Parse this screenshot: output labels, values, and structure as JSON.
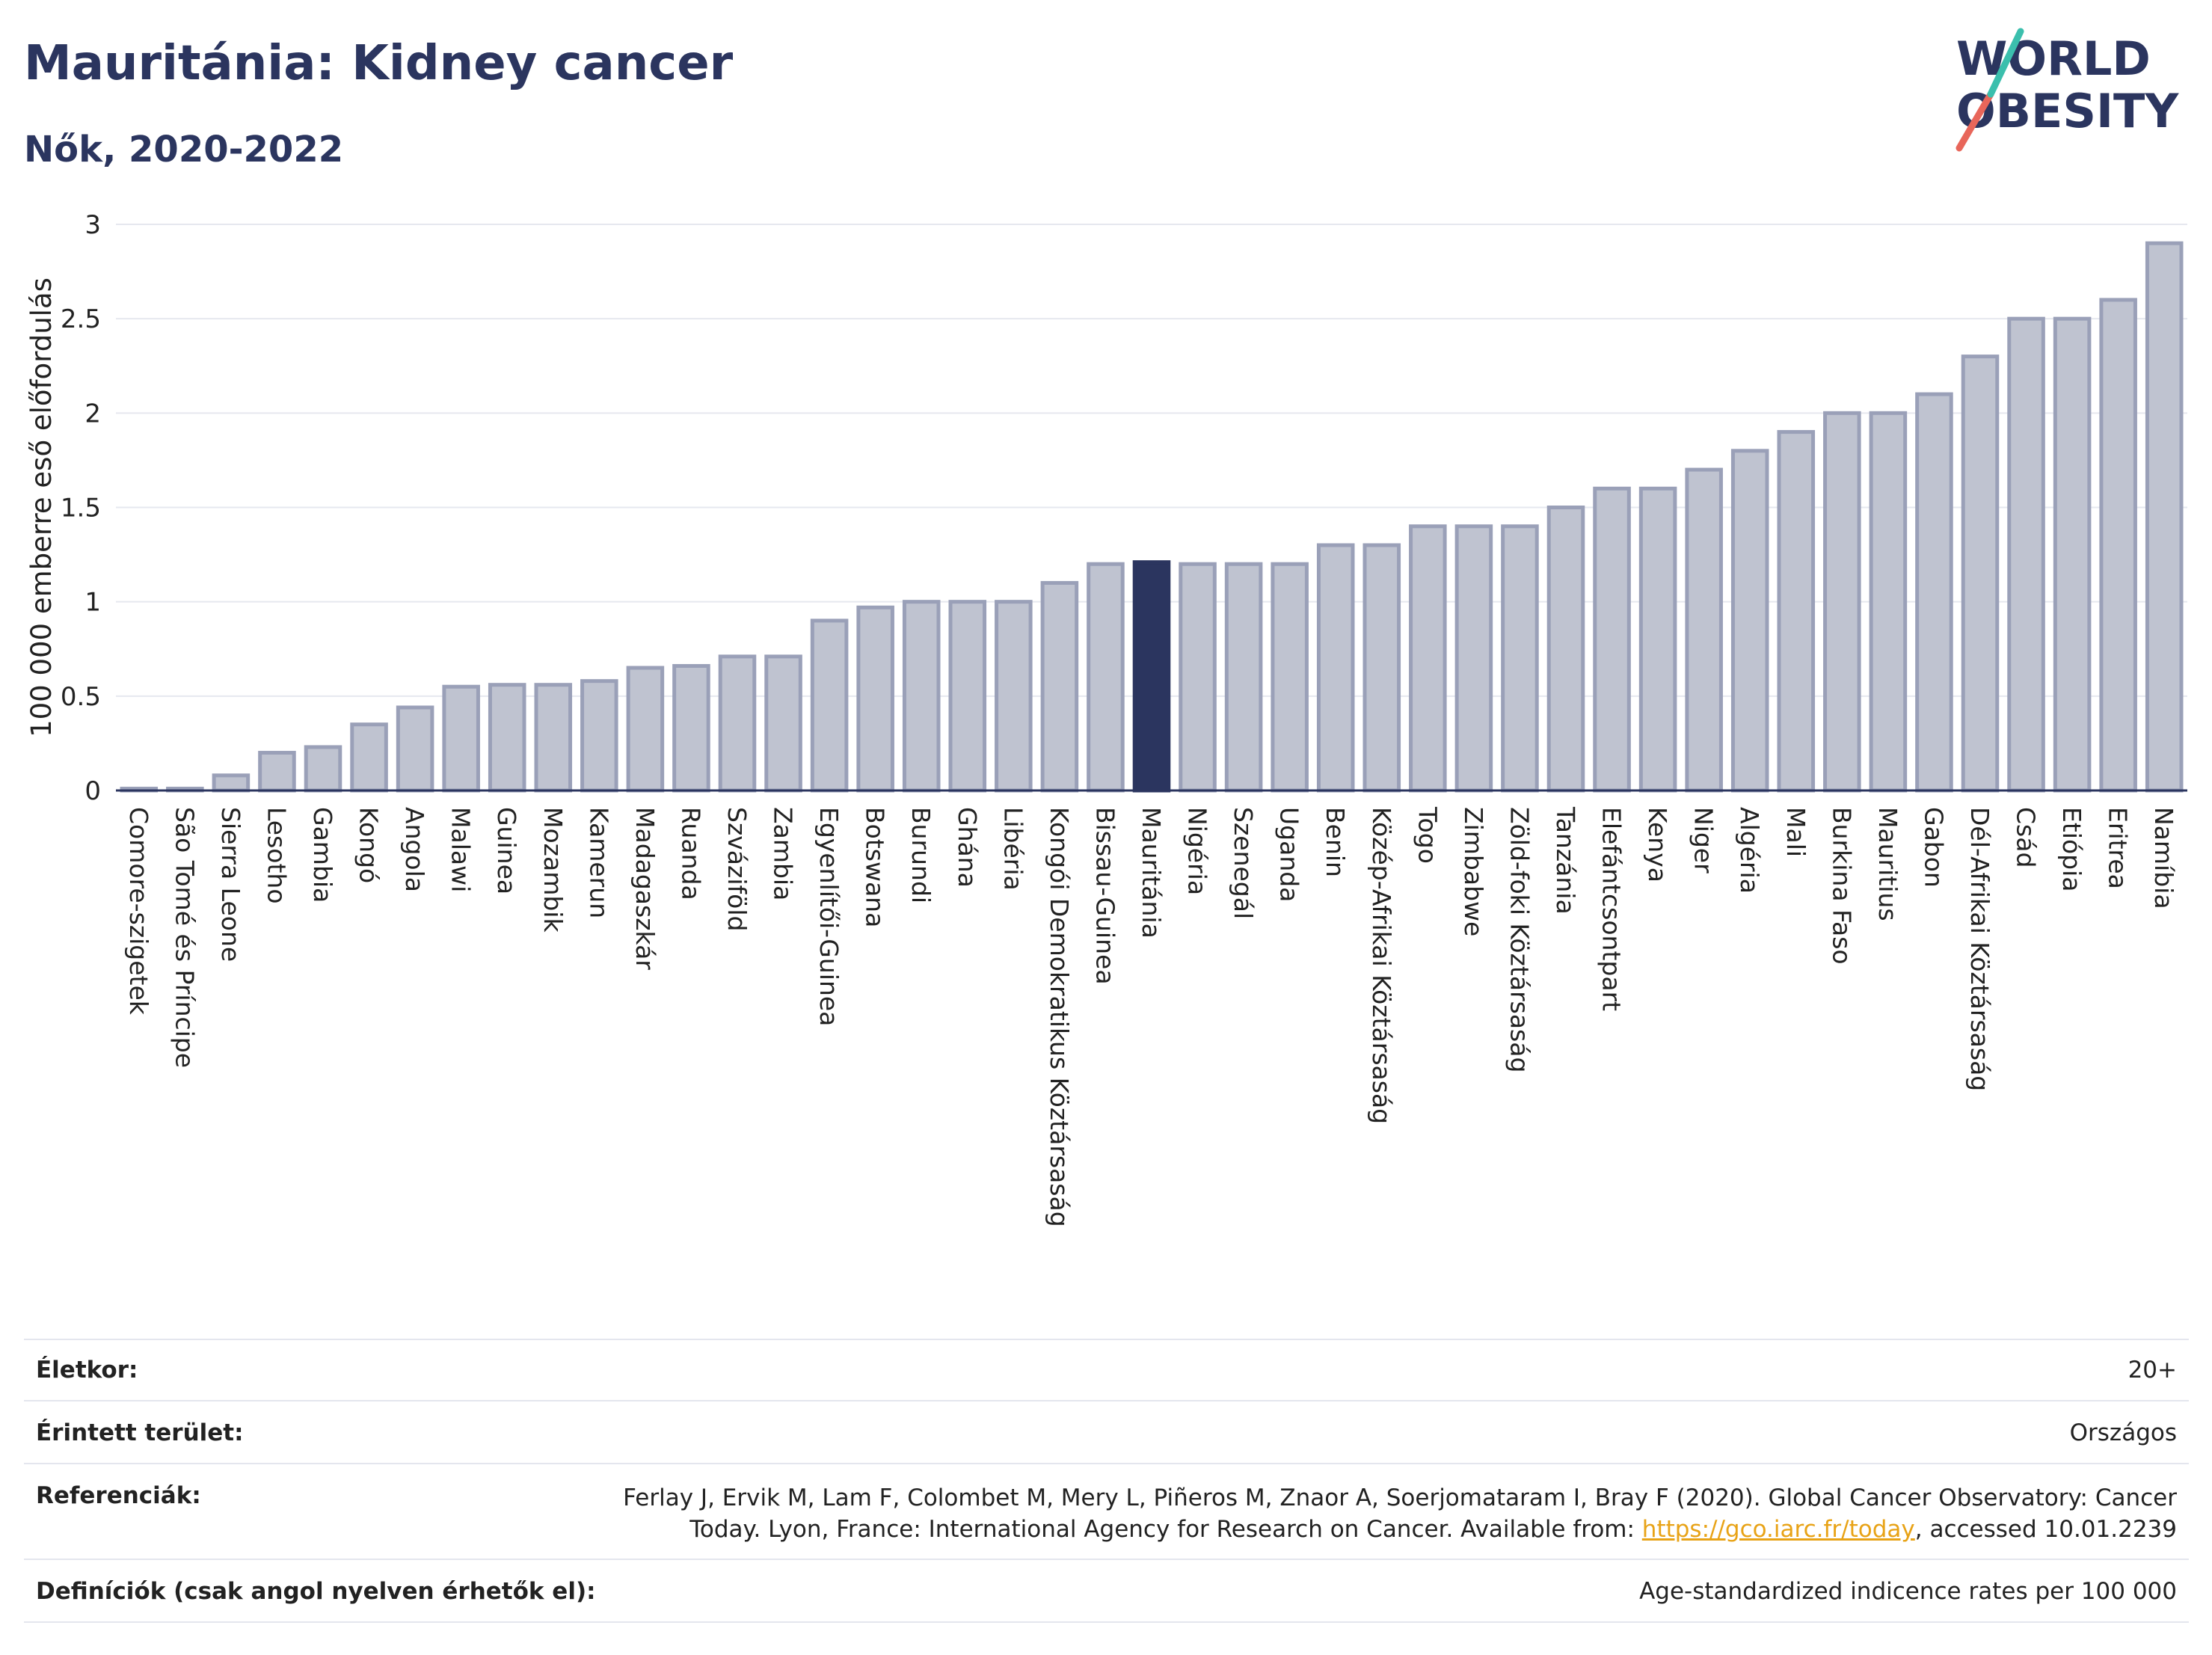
{
  "header": {
    "title": "Mauritánia: Kidney cancer",
    "subtitle": "Nők, 2020-2022"
  },
  "logo": {
    "line1": "WORLD",
    "line2": "OBESITY"
  },
  "colors": {
    "bar": "#bfc3d0",
    "bar_stroke": "#9aa0b8",
    "highlight": "#2b355f",
    "text": "#2b355f"
  },
  "chart_data": {
    "type": "bar",
    "ylabel": "100 000 emberre eső előfordulás",
    "ylim": [
      0,
      3
    ],
    "yticks": [
      "0",
      "0.5",
      "1",
      "1.5",
      "2",
      "2.5",
      "3"
    ],
    "grid": true,
    "highlight": "Mauritánia",
    "categories": [
      "Comore-szigetek",
      "São Tomé és Príncipe",
      "Sierra Leone",
      "Lesotho",
      "Gambia",
      "Kongó",
      "Angola",
      "Malawi",
      "Guinea",
      "Mozambik",
      "Kamerun",
      "Madagaszkár",
      "Ruanda",
      "Szváziföld",
      "Zambia",
      "Egyenlítői-Guinea",
      "Botswana",
      "Burundi",
      "Ghána",
      "Libéria",
      "Kongói Demokratikus Köztársaság",
      "Bissau-Guinea",
      "Mauritánia",
      "Nigéria",
      "Szenegál",
      "Uganda",
      "Benin",
      "Közép-Afrikai Köztársaság",
      "Togo",
      "Zimbabwe",
      "Zöld-foki Köztársaság",
      "Tanzánia",
      "Elefántcsontpart",
      "Kenya",
      "Niger",
      "Algéria",
      "Mali",
      "Burkina Faso",
      "Mauritius",
      "Gabon",
      "Dél-Afrikai Köztársaság",
      "Csád",
      "Etiópia",
      "Eritrea",
      "Namíbia"
    ],
    "values": [
      0.01,
      0.01,
      0.08,
      0.2,
      0.23,
      0.35,
      0.44,
      0.55,
      0.56,
      0.56,
      0.58,
      0.65,
      0.66,
      0.71,
      0.71,
      0.9,
      0.97,
      1.0,
      1.0,
      1.0,
      1.1,
      1.2,
      1.21,
      1.2,
      1.2,
      1.2,
      1.3,
      1.3,
      1.4,
      1.4,
      1.4,
      1.5,
      1.6,
      1.6,
      1.7,
      1.8,
      1.9,
      2.0,
      2.0,
      2.1,
      2.3,
      2.5,
      2.5,
      2.6,
      2.9
    ]
  },
  "info": {
    "age_label": "Életkor:",
    "age_value": "20+",
    "area_label": "Érintett terület:",
    "area_value": "Országos",
    "ref_label": "Referenciák:",
    "ref_line1": "Ferlay J, Ervik M, Lam F, Colombet M, Mery L, Piñeros M, Znaor A, Soerjomataram I, Bray F (2020). Global Cancer Observatory: Cancer",
    "ref_line2_pre": "Today. Lyon, France: International Agency for Research on Cancer. Available from: ",
    "ref_link": "https://gco.iarc.fr/today",
    "ref_line2_post": ", accessed 10.01.2239",
    "def_label": "Definíciók (csak angol nyelven érhetők el):",
    "def_value": "Age-standardized indicence rates per 100 000"
  }
}
